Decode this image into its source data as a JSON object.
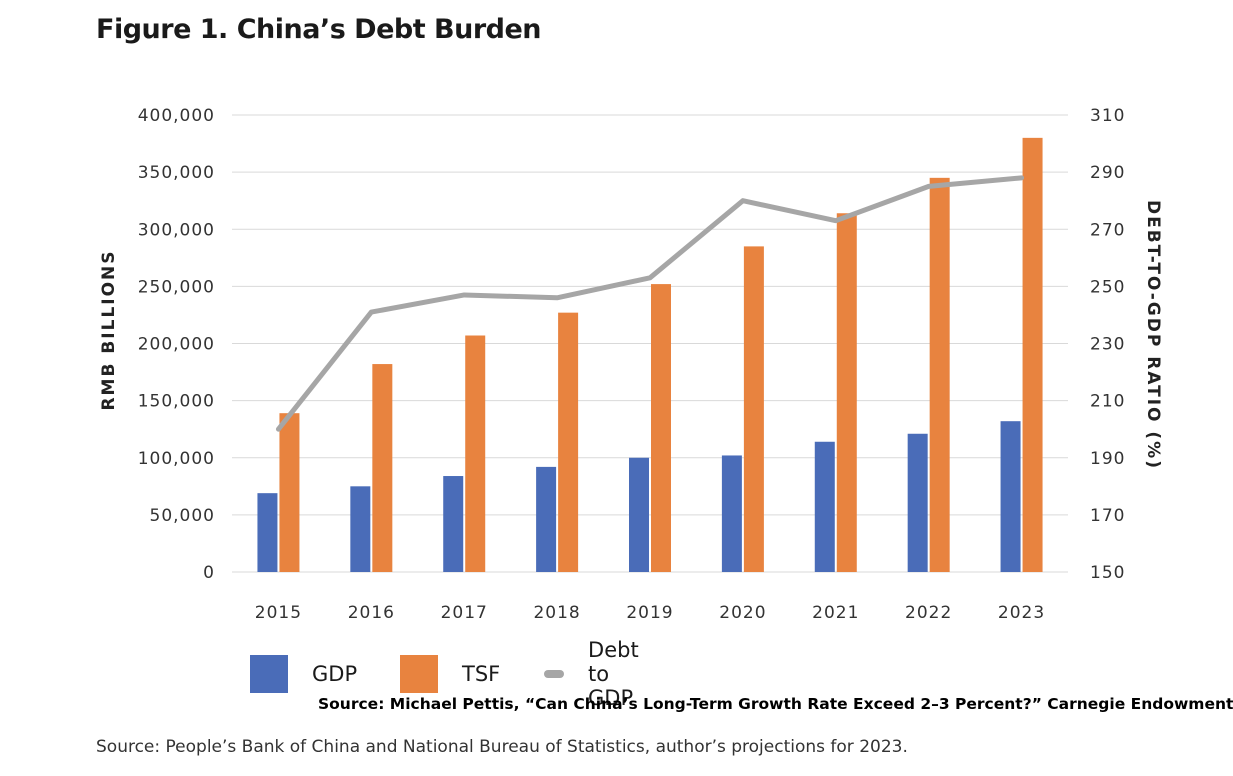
{
  "figure_title": "Figure 1. China’s Debt Burden",
  "source_overlay": "Source: Michael Pettis, “Can China’s Long-Term Growth Rate Exceed 2–3 Percent?” Carnegie Endowment",
  "source_note": "Source: People’s Bank of China and National Bureau of Statistics, author’s projections for 2023.",
  "legend": {
    "gdp": "GDP",
    "tsf": "TSF",
    "ratio": "Debt to GDP"
  },
  "colors": {
    "gdp": "#4a6cb8",
    "tsf": "#e8833f",
    "ratio": "#a6a6a6",
    "grid": "#d9d9d9"
  },
  "chart_data": {
    "type": "bar",
    "title": "Figure 1. China’s Debt Burden",
    "categories": [
      "2015",
      "2016",
      "2017",
      "2018",
      "2019",
      "2020",
      "2021",
      "2022",
      "2023"
    ],
    "ylabel": "RMB BILLIONS",
    "ylabel_right": "DEBT-TO-GDP RATIO (%)",
    "ylim": [
      0,
      400000
    ],
    "ylim_right": [
      150,
      310
    ],
    "yticks": [
      "0",
      "50,000",
      "100,000",
      "150,000",
      "200,000",
      "250,000",
      "300,000",
      "350,000",
      "400,000"
    ],
    "yticks_right": [
      "150",
      "170",
      "190",
      "210",
      "230",
      "250",
      "270",
      "290",
      "310"
    ],
    "grid": true,
    "series": [
      {
        "name": "GDP",
        "type": "bar",
        "axis": "left",
        "values": [
          69000,
          75000,
          84000,
          92000,
          100000,
          102000,
          114000,
          121000,
          132000
        ]
      },
      {
        "name": "TSF",
        "type": "bar",
        "axis": "left",
        "values": [
          139000,
          182000,
          207000,
          227000,
          252000,
          285000,
          314000,
          345000,
          380000
        ]
      },
      {
        "name": "Debt to GDP",
        "type": "line",
        "axis": "right",
        "values": [
          200,
          241,
          247,
          246,
          253,
          280,
          273,
          285,
          288
        ]
      }
    ]
  }
}
